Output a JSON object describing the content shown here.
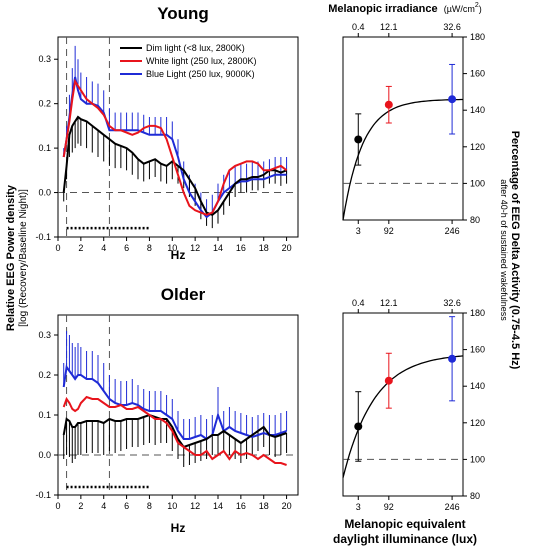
{
  "figure": {
    "shared_ylabel_line1": "Relative EEG Power density",
    "shared_ylabel_line2": "[log (Recovery/Baseline Night)]",
    "right_ylabel_line1": "Percentage of EEG Delta Activity (0.75-4.5 Hz)",
    "right_ylabel_line2": "after 40-h of sustained wakefulness",
    "top_axis_label": "Melanopic irradiance",
    "top_axis_unit": "(µW/cm",
    "top_axis_unit_sup": "2",
    "top_axis_unit_close": ")",
    "bottom_axis_line1": "Melanopic equivalent",
    "bottom_axis_line2": "daylight illuminance (lux)"
  },
  "colors": {
    "dim": "#000000",
    "white": "#e8141c",
    "blue": "#1f2bd6",
    "reference": "#555555"
  },
  "chart_data": [
    {
      "id": "young-spectra",
      "type": "line",
      "title": "Young",
      "xlabel": "Hz",
      "xlim": [
        0,
        21
      ],
      "ylim": [
        -0.1,
        0.35
      ],
      "xticks": [
        0,
        2,
        4,
        6,
        8,
        10,
        12,
        14,
        16,
        18,
        20
      ],
      "yticks": [
        -0.1,
        0.0,
        0.1,
        0.2,
        0.3
      ],
      "ytick_labels": [
        "-0.1",
        "0.0",
        "0.1",
        "0.2",
        "0.3"
      ],
      "vlines": [
        0.75,
        4.5
      ],
      "hline": 0,
      "significance_bar": [
        0.75,
        8.0
      ],
      "legend_position": "top-right",
      "series": [
        {
          "name": "Dim light (<8 lux, 2800K)",
          "color": "#000000",
          "errorbars": "down",
          "x": [
            0.5,
            0.75,
            1,
            1.25,
            1.5,
            1.75,
            2,
            2.5,
            3,
            3.5,
            4,
            4.5,
            5,
            5.5,
            6,
            6.5,
            7,
            7.5,
            8,
            8.5,
            9,
            9.5,
            10,
            10.5,
            11,
            11.5,
            12,
            12.5,
            13,
            13.5,
            14,
            14.5,
            15,
            15.5,
            16,
            16.5,
            17,
            17.5,
            18,
            18.5,
            19,
            19.5,
            20
          ],
          "y": [
            0.0,
            0.06,
            0.13,
            0.15,
            0.16,
            0.17,
            0.165,
            0.16,
            0.15,
            0.14,
            0.13,
            0.12,
            0.11,
            0.105,
            0.1,
            0.09,
            0.075,
            0.065,
            0.07,
            0.075,
            0.065,
            0.06,
            0.07,
            0.06,
            0.05,
            0.03,
            0.01,
            -0.02,
            -0.045,
            -0.05,
            -0.04,
            -0.02,
            0.0,
            0.02,
            0.03,
            0.03,
            0.035,
            0.035,
            0.04,
            0.05,
            0.05,
            0.045,
            0.05
          ],
          "err": [
            0.02,
            0.03,
            0.05,
            0.06,
            0.06,
            0.06,
            0.06,
            0.06,
            0.06,
            0.06,
            0.06,
            0.06,
            0.055,
            0.05,
            0.05,
            0.05,
            0.045,
            0.04,
            0.04,
            0.04,
            0.04,
            0.04,
            0.04,
            0.04,
            0.04,
            0.04,
            0.04,
            0.04,
            0.03,
            0.03,
            0.03,
            0.03,
            0.03,
            0.03,
            0.03,
            0.03,
            0.03,
            0.03,
            0.03,
            0.03,
            0.03,
            0.03,
            0.03
          ]
        },
        {
          "name": "White light (250 lux, 2800K)",
          "color": "#e8141c",
          "errorbars": "none",
          "x": [
            0.5,
            0.75,
            1,
            1.25,
            1.5,
            1.75,
            2,
            2.5,
            3,
            3.5,
            4,
            4.5,
            5,
            5.5,
            6,
            6.5,
            7,
            7.5,
            8,
            8.5,
            9,
            9.5,
            10,
            10.5,
            11,
            11.5,
            12,
            12.5,
            13,
            13.5,
            14,
            14.5,
            15,
            15.5,
            16,
            16.5,
            17,
            17.5,
            18,
            18.5,
            19,
            19.5,
            20
          ],
          "y": [
            0.08,
            0.12,
            0.16,
            0.21,
            0.25,
            0.24,
            0.23,
            0.21,
            0.2,
            0.19,
            0.175,
            0.15,
            0.14,
            0.14,
            0.135,
            0.13,
            0.135,
            0.145,
            0.15,
            0.15,
            0.145,
            0.12,
            0.08,
            0.04,
            0.0,
            -0.03,
            -0.04,
            -0.045,
            -0.05,
            -0.045,
            -0.02,
            0.02,
            0.05,
            0.06,
            0.065,
            0.07,
            0.07,
            0.065,
            0.05,
            0.05,
            0.055,
            0.06,
            0.05
          ]
        },
        {
          "name": "Blue Light (250 lux, 9000K)",
          "color": "#1f2bd6",
          "errorbars": "up",
          "x": [
            0.5,
            0.75,
            1,
            1.25,
            1.5,
            1.75,
            2,
            2.5,
            3,
            3.5,
            4,
            4.5,
            5,
            5.5,
            6,
            6.5,
            7,
            7.5,
            8,
            8.5,
            9,
            9.5,
            10,
            10.5,
            11,
            11.5,
            12,
            12.5,
            13,
            13.5,
            14,
            14.5,
            15,
            15.5,
            16,
            16.5,
            17,
            17.5,
            18,
            18.5,
            19,
            19.5,
            20
          ],
          "y": [
            0.08,
            0.12,
            0.17,
            0.22,
            0.26,
            0.23,
            0.21,
            0.2,
            0.2,
            0.195,
            0.18,
            0.14,
            0.14,
            0.14,
            0.14,
            0.14,
            0.14,
            0.135,
            0.13,
            0.13,
            0.13,
            0.13,
            0.12,
            0.08,
            0.03,
            0.0,
            -0.02,
            -0.04,
            -0.055,
            -0.045,
            -0.02,
            0.0,
            0.01,
            0.02,
            0.025,
            0.025,
            0.03,
            0.03,
            0.03,
            0.035,
            0.04,
            0.04,
            0.04
          ],
          "err": [
            0.02,
            0.03,
            0.05,
            0.06,
            0.07,
            0.07,
            0.06,
            0.06,
            0.05,
            0.05,
            0.05,
            0.05,
            0.04,
            0.04,
            0.04,
            0.04,
            0.04,
            0.04,
            0.04,
            0.04,
            0.04,
            0.04,
            0.04,
            0.04,
            0.04,
            0.04,
            0.04,
            0.04,
            0.04,
            0.04,
            0.04,
            0.04,
            0.04,
            0.04,
            0.04,
            0.04,
            0.04,
            0.04,
            0.04,
            0.04,
            0.04,
            0.04,
            0.04
          ]
        }
      ]
    },
    {
      "id": "young-dose-response",
      "type": "scatter",
      "xticks_bottom": [
        "3",
        "92",
        "246"
      ],
      "xticks_top": [
        "0.4",
        "12.1",
        "32.6"
      ],
      "ylim": [
        80,
        180
      ],
      "yticks": [
        80,
        100,
        120,
        140,
        160,
        180
      ],
      "reference_line": 100,
      "points": [
        {
          "category": "3",
          "value": 124,
          "err": 14,
          "color": "#000000"
        },
        {
          "category": "92",
          "value": 143,
          "err": 10,
          "color": "#e8141c"
        },
        {
          "category": "246",
          "value": 146,
          "err": 19,
          "color": "#1f2bd6"
        }
      ],
      "fit": {
        "baseline": 80,
        "plateau": 146,
        "rate": 0.55
      }
    },
    {
      "id": "older-spectra",
      "type": "line",
      "title": "Older",
      "xlabel": "Hz",
      "xlim": [
        0,
        21
      ],
      "ylim": [
        -0.1,
        0.35
      ],
      "xticks": [
        0,
        2,
        4,
        6,
        8,
        10,
        12,
        14,
        16,
        18,
        20
      ],
      "yticks": [
        -0.1,
        0.0,
        0.1,
        0.2,
        0.3
      ],
      "ytick_labels": [
        "-0.1",
        "0.0",
        "0.1",
        "0.2",
        "0.3"
      ],
      "vlines": [
        0.75,
        4.5
      ],
      "hline": 0,
      "significance_bar": [
        0.75,
        8.0
      ],
      "series": [
        {
          "name": "Dim light (<8 lux, 2800K)",
          "color": "#000000",
          "errorbars": "down",
          "x": [
            0.5,
            0.75,
            1,
            1.25,
            1.5,
            1.75,
            2,
            2.5,
            3,
            3.5,
            4,
            4.5,
            5,
            5.5,
            6,
            6.5,
            7,
            7.5,
            8,
            8.5,
            9,
            9.5,
            10,
            10.5,
            11,
            11.5,
            12,
            12.5,
            13,
            13.5,
            14,
            14.5,
            15,
            15.5,
            16,
            16.5,
            17,
            17.5,
            18,
            18.5,
            19,
            19.5,
            20
          ],
          "y": [
            0.05,
            0.09,
            0.085,
            0.07,
            0.07,
            0.08,
            0.08,
            0.085,
            0.085,
            0.085,
            0.08,
            0.09,
            0.085,
            0.085,
            0.09,
            0.09,
            0.09,
            0.095,
            0.1,
            0.095,
            0.09,
            0.09,
            0.07,
            0.04,
            0.02,
            0.025,
            0.03,
            0.035,
            0.04,
            0.05,
            0.05,
            0.06,
            0.05,
            0.04,
            0.03,
            0.04,
            0.05,
            0.06,
            0.07,
            0.05,
            0.045,
            0.05,
            0.055
          ],
          "err": [
            0.06,
            0.09,
            0.09,
            0.09,
            0.08,
            0.08,
            0.08,
            0.08,
            0.08,
            0.08,
            0.08,
            0.08,
            0.08,
            0.075,
            0.075,
            0.07,
            0.07,
            0.07,
            0.07,
            0.07,
            0.06,
            0.06,
            0.06,
            0.05,
            0.05,
            0.05,
            0.05,
            0.05,
            0.05,
            0.05,
            0.05,
            0.05,
            0.05,
            0.05,
            0.05,
            0.05,
            0.05,
            0.05,
            0.05,
            0.05,
            0.05,
            0.05,
            0.05
          ]
        },
        {
          "name": "White light (250 lux, 2800K)",
          "color": "#e8141c",
          "errorbars": "none",
          "x": [
            0.5,
            0.75,
            1,
            1.25,
            1.5,
            1.75,
            2,
            2.5,
            3,
            3.5,
            4,
            4.5,
            5,
            5.5,
            6,
            6.5,
            7,
            7.5,
            8,
            8.5,
            9,
            9.5,
            10,
            10.5,
            11,
            11.5,
            12,
            12.5,
            13,
            13.5,
            14,
            14.5,
            15,
            15.5,
            16,
            16.5,
            17,
            17.5,
            18,
            18.5,
            19,
            19.5,
            20
          ],
          "y": [
            0.12,
            0.14,
            0.13,
            0.115,
            0.11,
            0.115,
            0.13,
            0.145,
            0.14,
            0.14,
            0.13,
            0.12,
            0.12,
            0.125,
            0.115,
            0.115,
            0.12,
            0.11,
            0.1,
            0.09,
            0.09,
            0.08,
            0.06,
            0.03,
            0.02,
            0.01,
            0.0,
            0.0,
            0.01,
            -0.01,
            0.0,
            0.01,
            -0.01,
            0.01,
            0.0,
            0.005,
            0.0,
            -0.01,
            0.0,
            -0.01,
            -0.02,
            -0.02,
            -0.025
          ]
        },
        {
          "name": "Blue Light (250 lux, 9000K)",
          "color": "#1f2bd6",
          "errorbars": "up",
          "x": [
            0.5,
            0.75,
            1,
            1.25,
            1.5,
            1.75,
            2,
            2.5,
            3,
            3.5,
            4,
            4.5,
            5,
            5.5,
            6,
            6.5,
            7,
            7.5,
            8,
            8.5,
            9,
            9.5,
            10,
            10.5,
            11,
            11.5,
            12,
            12.5,
            13,
            13.5,
            14,
            14.5,
            15,
            15.5,
            16,
            16.5,
            17,
            17.5,
            18,
            18.5,
            19,
            19.5,
            20
          ],
          "y": [
            0.17,
            0.22,
            0.21,
            0.2,
            0.19,
            0.2,
            0.2,
            0.19,
            0.19,
            0.18,
            0.16,
            0.14,
            0.13,
            0.125,
            0.125,
            0.13,
            0.125,
            0.115,
            0.11,
            0.11,
            0.11,
            0.1,
            0.09,
            0.06,
            0.04,
            0.04,
            0.045,
            0.05,
            0.04,
            0.05,
            0.1,
            0.06,
            0.07,
            0.06,
            0.055,
            0.05,
            0.045,
            0.05,
            0.055,
            0.05,
            0.05,
            0.055,
            0.06
          ],
          "err": [
            0.06,
            0.09,
            0.09,
            0.08,
            0.08,
            0.08,
            0.07,
            0.07,
            0.07,
            0.07,
            0.07,
            0.06,
            0.06,
            0.06,
            0.06,
            0.06,
            0.05,
            0.05,
            0.05,
            0.05,
            0.05,
            0.05,
            0.05,
            0.05,
            0.05,
            0.05,
            0.05,
            0.05,
            0.05,
            0.05,
            0.07,
            0.05,
            0.05,
            0.05,
            0.05,
            0.05,
            0.05,
            0.05,
            0.05,
            0.05,
            0.05,
            0.05,
            0.05
          ]
        }
      ]
    },
    {
      "id": "older-dose-response",
      "type": "scatter",
      "xticks_bottom": [
        "3",
        "92",
        "246"
      ],
      "xticks_top": [
        "0.4",
        "12.1",
        "32.6"
      ],
      "ylim": [
        80,
        180
      ],
      "yticks": [
        80,
        100,
        120,
        140,
        160,
        180
      ],
      "reference_line": 100,
      "points": [
        {
          "category": "3",
          "value": 118,
          "err": 19,
          "color": "#000000"
        },
        {
          "category": "92",
          "value": 143,
          "err": 15,
          "color": "#e8141c"
        },
        {
          "category": "246",
          "value": 155,
          "err": 23,
          "color": "#1f2bd6"
        }
      ],
      "fit": {
        "baseline": 90,
        "plateau": 158,
        "rate": 0.35
      }
    }
  ]
}
